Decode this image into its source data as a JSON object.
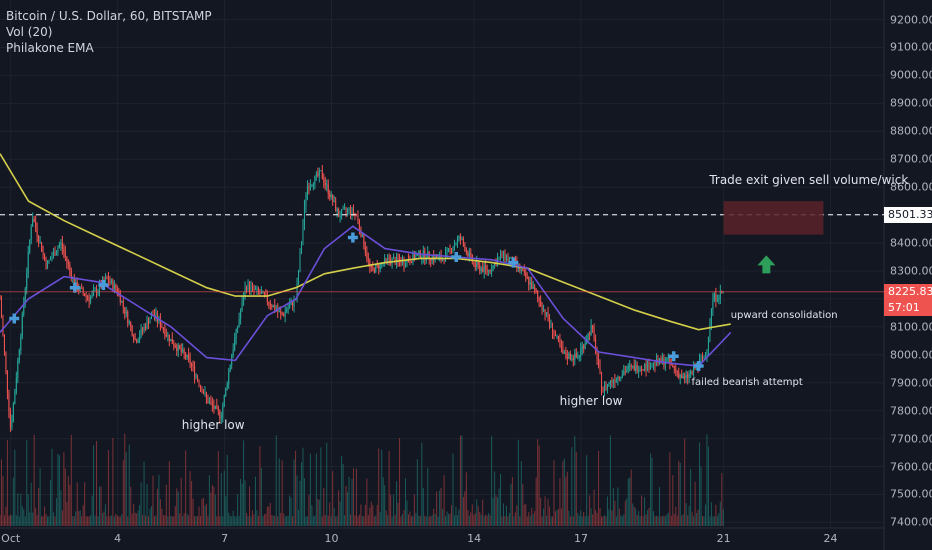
{
  "legend": {
    "symbol": "Bitcoin / U.S. Dollar, 60, BITSTAMP",
    "volume": "Vol (20)",
    "ema": "Philakone EMA"
  },
  "price_labels": {
    "current": "8225.83",
    "countdown": "57:01",
    "level": "8501.33"
  },
  "colors": {
    "background": "#131722",
    "up": "#26a69a",
    "down": "#ef5350",
    "ema_slow": "#d4cf4a",
    "ema_fast": "#6a4fd8",
    "marker": "#4a9bd9",
    "level_line": "#ffffff",
    "current_price": "#ef5350",
    "arrow": "#2e9e5b",
    "exit_zone": "#5a2228"
  },
  "annotations": {
    "exit_label": "Trade exit given sell volume/wick",
    "consolidation": "upward consolidation",
    "failed_bearish": "failed bearish attempt",
    "higher_low_1": "higher low",
    "higher_low_2": "higher low"
  },
  "chart_data": {
    "type": "candlestick",
    "title": "Bitcoin / U.S. Dollar, 60, BITSTAMP",
    "xlabel": "",
    "ylabel": "",
    "x_ticks": [
      "Oct",
      "4",
      "7",
      "10",
      "14",
      "17",
      "21",
      "24"
    ],
    "x_tick_day": [
      1,
      4,
      7,
      10,
      14,
      17,
      21,
      24
    ],
    "x_range_days": [
      0.7,
      25.5
    ],
    "y_ticks": [
      7400,
      7500,
      7600,
      7700,
      7800,
      7900,
      8000,
      8100,
      8200,
      8300,
      8400,
      8500,
      8600,
      8700,
      8800,
      8900,
      9000,
      9100,
      9200
    ],
    "ylim": [
      7380,
      9270
    ],
    "y_tick_labels": [
      "7400.00",
      "7500.00",
      "7600.00",
      "7700.00",
      "7800.00",
      "7900.00",
      "8000.00",
      "8100.00",
      "8200.00",
      "8300.00",
      "8400.00",
      "8500.00",
      "8600.00",
      "8700.00",
      "8800.00",
      "8900.00",
      "9000.00",
      "9100.00",
      "9200.00"
    ],
    "horizontal_line": 8501.33,
    "current_price": 8225.83,
    "price_path": [
      [
        0.7,
        8200
      ],
      [
        1.0,
        7730
      ],
      [
        1.3,
        8100
      ],
      [
        1.6,
        8500
      ],
      [
        2.0,
        8320
      ],
      [
        2.4,
        8400
      ],
      [
        2.8,
        8250
      ],
      [
        3.2,
        8200
      ],
      [
        3.7,
        8270
      ],
      [
        4.0,
        8230
      ],
      [
        4.5,
        8050
      ],
      [
        5.0,
        8150
      ],
      [
        5.5,
        8050
      ],
      [
        6.0,
        7980
      ],
      [
        6.5,
        7840
      ],
      [
        6.9,
        7780
      ],
      [
        7.2,
        8000
      ],
      [
        7.6,
        8250
      ],
      [
        8.1,
        8210
      ],
      [
        8.6,
        8140
      ],
      [
        9.0,
        8200
      ],
      [
        9.3,
        8600
      ],
      [
        9.7,
        8650
      ],
      [
        10.2,
        8500
      ],
      [
        10.5,
        8520
      ],
      [
        10.7,
        8500
      ],
      [
        11.1,
        8300
      ],
      [
        11.6,
        8340
      ],
      [
        12.0,
        8330
      ],
      [
        12.5,
        8360
      ],
      [
        13.1,
        8340
      ],
      [
        13.6,
        8420
      ],
      [
        14.0,
        8320
      ],
      [
        14.4,
        8300
      ],
      [
        14.8,
        8360
      ],
      [
        15.2,
        8320
      ],
      [
        15.6,
        8250
      ],
      [
        16.0,
        8150
      ],
      [
        16.5,
        8000
      ],
      [
        16.9,
        7990
      ],
      [
        17.3,
        8100
      ],
      [
        17.6,
        7870
      ],
      [
        17.8,
        7900
      ],
      [
        18.3,
        7950
      ],
      [
        18.8,
        7960
      ],
      [
        19.4,
        7980
      ],
      [
        19.9,
        7910
      ],
      [
        20.2,
        7950
      ],
      [
        20.5,
        8000
      ],
      [
        20.7,
        8200
      ],
      [
        21.0,
        8226
      ]
    ],
    "ema_slow": [
      [
        0.7,
        8720
      ],
      [
        1.5,
        8550
      ],
      [
        2.5,
        8480
      ],
      [
        3.5,
        8420
      ],
      [
        4.5,
        8360
      ],
      [
        5.5,
        8300
      ],
      [
        6.5,
        8240
      ],
      [
        7.3,
        8210
      ],
      [
        8.2,
        8210
      ],
      [
        9.0,
        8240
      ],
      [
        9.8,
        8290
      ],
      [
        10.6,
        8310
      ],
      [
        11.5,
        8330
      ],
      [
        12.5,
        8345
      ],
      [
        13.5,
        8345
      ],
      [
        14.5,
        8330
      ],
      [
        15.5,
        8310
      ],
      [
        16.5,
        8260
      ],
      [
        17.5,
        8210
      ],
      [
        18.5,
        8160
      ],
      [
        19.5,
        8120
      ],
      [
        20.3,
        8090
      ],
      [
        21.2,
        8110
      ]
    ],
    "ema_fast": [
      [
        0.7,
        8080
      ],
      [
        1.5,
        8200
      ],
      [
        2.5,
        8280
      ],
      [
        3.5,
        8260
      ],
      [
        4.5,
        8180
      ],
      [
        5.5,
        8100
      ],
      [
        6.5,
        7990
      ],
      [
        7.3,
        7980
      ],
      [
        8.2,
        8140
      ],
      [
        9.0,
        8200
      ],
      [
        9.8,
        8380
      ],
      [
        10.6,
        8460
      ],
      [
        11.5,
        8380
      ],
      [
        12.5,
        8360
      ],
      [
        13.5,
        8350
      ],
      [
        14.5,
        8340
      ],
      [
        15.5,
        8310
      ],
      [
        16.5,
        8130
      ],
      [
        17.5,
        8010
      ],
      [
        18.5,
        7990
      ],
      [
        19.5,
        7970
      ],
      [
        20.3,
        7960
      ],
      [
        21.2,
        8080
      ]
    ],
    "markers": [
      [
        1.1,
        8130
      ],
      [
        2.8,
        8240
      ],
      [
        3.6,
        8250
      ],
      [
        10.6,
        8420
      ],
      [
        13.5,
        8350
      ],
      [
        15.1,
        8330
      ],
      [
        19.6,
        7995
      ],
      [
        20.3,
        7960
      ]
    ],
    "exit_zone": {
      "x": [
        21.0,
        23.8
      ],
      "y": [
        8430,
        8550
      ]
    },
    "volume_max": 100
  }
}
